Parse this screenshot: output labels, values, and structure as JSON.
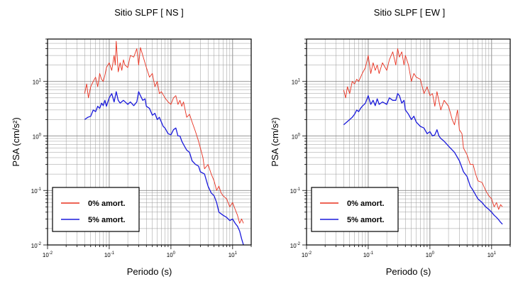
{
  "chart_data": [
    {
      "type": "line",
      "title": "Sitio SLPF [ NS ]",
      "xlabel": "Periodo (s)",
      "ylabel": "PSA (cm/s²)",
      "xscale": "log",
      "yscale": "log",
      "xlim": [
        0.01,
        20
      ],
      "ylim": [
        0.01,
        60
      ],
      "grid": true,
      "legend_position": "bottom-left",
      "x_ticks": [
        {
          "base": "10",
          "exp": "-2"
        },
        {
          "base": "10",
          "exp": "-1"
        },
        {
          "base": "10",
          "exp": "0"
        },
        {
          "base": "10",
          "exp": "1"
        }
      ],
      "y_ticks": [
        {
          "base": "10",
          "exp": "-2"
        },
        {
          "base": "10",
          "exp": "-1"
        },
        {
          "base": "10",
          "exp": "0"
        },
        {
          "base": "10",
          "exp": "1"
        }
      ],
      "series": [
        {
          "name": "0% amort.",
          "color": "#e8301f",
          "x": [
            0.04,
            0.043,
            0.046,
            0.05,
            0.055,
            0.06,
            0.065,
            0.07,
            0.075,
            0.08,
            0.085,
            0.09,
            0.1,
            0.11,
            0.12,
            0.125,
            0.13,
            0.14,
            0.15,
            0.16,
            0.17,
            0.18,
            0.2,
            0.22,
            0.25,
            0.28,
            0.3,
            0.32,
            0.35,
            0.4,
            0.45,
            0.5,
            0.55,
            0.6,
            0.65,
            0.7,
            0.8,
            0.9,
            1.0,
            1.1,
            1.2,
            1.3,
            1.4,
            1.5,
            1.6,
            1.8,
            2.0,
            2.2,
            2.5,
            2.8,
            3.0,
            3.3,
            3.5,
            4.0,
            4.5,
            5.0,
            5.5,
            6.0,
            6.5,
            7.0,
            8.0,
            9.0,
            10,
            11,
            12,
            13,
            14,
            15
          ],
          "y": [
            6,
            9,
            5,
            8,
            10,
            12,
            8,
            14,
            11,
            10,
            13,
            18,
            22,
            16,
            30,
            20,
            55,
            15,
            22,
            16,
            25,
            20,
            18,
            30,
            28,
            40,
            20,
            42,
            30,
            18,
            12,
            14,
            8,
            10,
            6,
            6.5,
            5,
            4.2,
            3.8,
            5,
            5.5,
            3.8,
            4.5,
            3.5,
            4.2,
            2.2,
            2.5,
            1.8,
            1.2,
            0.8,
            0.6,
            0.4,
            0.25,
            0.3,
            0.2,
            0.15,
            0.1,
            0.12,
            0.09,
            0.08,
            0.07,
            0.05,
            0.06,
            0.045,
            0.035,
            0.025,
            0.03,
            0.025
          ]
        },
        {
          "name": "5% amort.",
          "color": "#1a1adb",
          "x": [
            0.04,
            0.045,
            0.05,
            0.055,
            0.06,
            0.065,
            0.07,
            0.075,
            0.08,
            0.085,
            0.09,
            0.1,
            0.11,
            0.12,
            0.13,
            0.14,
            0.15,
            0.17,
            0.2,
            0.22,
            0.25,
            0.28,
            0.3,
            0.32,
            0.35,
            0.38,
            0.4,
            0.45,
            0.5,
            0.55,
            0.6,
            0.65,
            0.7,
            0.75,
            0.8,
            0.9,
            1.0,
            1.1,
            1.2,
            1.3,
            1.4,
            1.5,
            1.6,
            1.8,
            2.0,
            2.2,
            2.5,
            2.8,
            3.0,
            3.5,
            4.0,
            4.5,
            5.0,
            5.5,
            6.0,
            7.0,
            8.0,
            9.0,
            10,
            11,
            12,
            13,
            14,
            15
          ],
          "y": [
            2,
            2.2,
            2.3,
            3.0,
            2.8,
            3.5,
            3.2,
            4.0,
            3.6,
            4.5,
            3.5,
            5,
            6,
            4.2,
            6.5,
            4.5,
            4.0,
            4.5,
            3.8,
            4.2,
            3.6,
            4.2,
            6.5,
            5.5,
            4.5,
            4.8,
            3.5,
            3.2,
            2.4,
            2.6,
            2.0,
            2.2,
            1.8,
            1.5,
            1.4,
            1.1,
            1.05,
            1.3,
            1.4,
            1.0,
            1.0,
            0.8,
            0.7,
            0.55,
            0.5,
            0.35,
            0.3,
            0.28,
            0.22,
            0.2,
            0.12,
            0.09,
            0.08,
            0.06,
            0.04,
            0.035,
            0.032,
            0.028,
            0.03,
            0.025,
            0.022,
            0.018,
            0.013,
            0.01
          ]
        }
      ]
    },
    {
      "type": "line",
      "title": "Sitio SLPF [ EW ]",
      "xlabel": "Periodo (s)",
      "ylabel": "PSA (cm/s²)",
      "xscale": "log",
      "yscale": "log",
      "xlim": [
        0.01,
        20
      ],
      "ylim": [
        0.01,
        60
      ],
      "grid": true,
      "legend_position": "bottom-left",
      "x_ticks": [
        {
          "base": "10",
          "exp": "-2"
        },
        {
          "base": "10",
          "exp": "-1"
        },
        {
          "base": "10",
          "exp": "0"
        },
        {
          "base": "10",
          "exp": "1"
        }
      ],
      "y_ticks": [
        {
          "base": "10",
          "exp": "-2"
        },
        {
          "base": "10",
          "exp": "-1"
        },
        {
          "base": "10",
          "exp": "0"
        },
        {
          "base": "10",
          "exp": "1"
        }
      ],
      "series": [
        {
          "name": "0% amort.",
          "color": "#e8301f",
          "x": [
            0.04,
            0.043,
            0.046,
            0.05,
            0.055,
            0.06,
            0.065,
            0.07,
            0.08,
            0.09,
            0.1,
            0.11,
            0.12,
            0.13,
            0.14,
            0.15,
            0.17,
            0.2,
            0.22,
            0.25,
            0.28,
            0.3,
            0.32,
            0.35,
            0.38,
            0.4,
            0.45,
            0.5,
            0.55,
            0.6,
            0.7,
            0.8,
            0.9,
            1.0,
            1.1,
            1.2,
            1.3,
            1.5,
            1.7,
            2.0,
            2.3,
            2.5,
            2.8,
            3.0,
            3.3,
            3.5,
            4.0,
            4.5,
            5.0,
            5.5,
            6.0,
            7.0,
            8.0,
            9.0,
            10,
            11,
            12,
            13,
            14,
            15
          ],
          "y": [
            7,
            5,
            8,
            6,
            10,
            9,
            11,
            10,
            14,
            18,
            30,
            14,
            22,
            16,
            20,
            14,
            22,
            16,
            25,
            35,
            20,
            40,
            28,
            35,
            20,
            30,
            20,
            10,
            14,
            12,
            11,
            6,
            8,
            5.5,
            6,
            3.5,
            6.5,
            3,
            4.5,
            3.5,
            2,
            1.6,
            3,
            1.3,
            1.1,
            0.6,
            0.45,
            0.3,
            0.3,
            0.2,
            0.15,
            0.14,
            0.1,
            0.08,
            0.07,
            0.05,
            0.06,
            0.045,
            0.055,
            0.05
          ]
        },
        {
          "name": "5% amort.",
          "color": "#1a1adb",
          "x": [
            0.04,
            0.045,
            0.05,
            0.055,
            0.06,
            0.065,
            0.07,
            0.075,
            0.08,
            0.09,
            0.1,
            0.11,
            0.12,
            0.13,
            0.14,
            0.15,
            0.17,
            0.2,
            0.22,
            0.25,
            0.28,
            0.3,
            0.32,
            0.35,
            0.38,
            0.4,
            0.45,
            0.5,
            0.55,
            0.6,
            0.7,
            0.8,
            0.9,
            1.0,
            1.1,
            1.2,
            1.3,
            1.4,
            1.5,
            1.7,
            2.0,
            2.5,
            3.0,
            3.5,
            4.0,
            4.5,
            5.0,
            6.0,
            7.0,
            8.0,
            9.0,
            10,
            11,
            12,
            13,
            14,
            15
          ],
          "y": [
            1.6,
            1.8,
            2.0,
            2.2,
            2.5,
            3.0,
            2.8,
            3.2,
            3.5,
            4.0,
            5.5,
            3.8,
            4.5,
            3.6,
            4.8,
            3.8,
            4.2,
            3.8,
            5,
            4.5,
            4.5,
            6,
            5.5,
            4.0,
            4.5,
            3.0,
            2.5,
            2.0,
            2.3,
            1.8,
            1.5,
            1.4,
            1.1,
            1.2,
            1.0,
            1.05,
            1.3,
            1.0,
            0.9,
            0.8,
            0.65,
            0.5,
            0.35,
            0.22,
            0.18,
            0.12,
            0.1,
            0.07,
            0.06,
            0.05,
            0.045,
            0.04,
            0.035,
            0.032,
            0.029,
            0.026,
            0.024
          ]
        }
      ]
    }
  ]
}
